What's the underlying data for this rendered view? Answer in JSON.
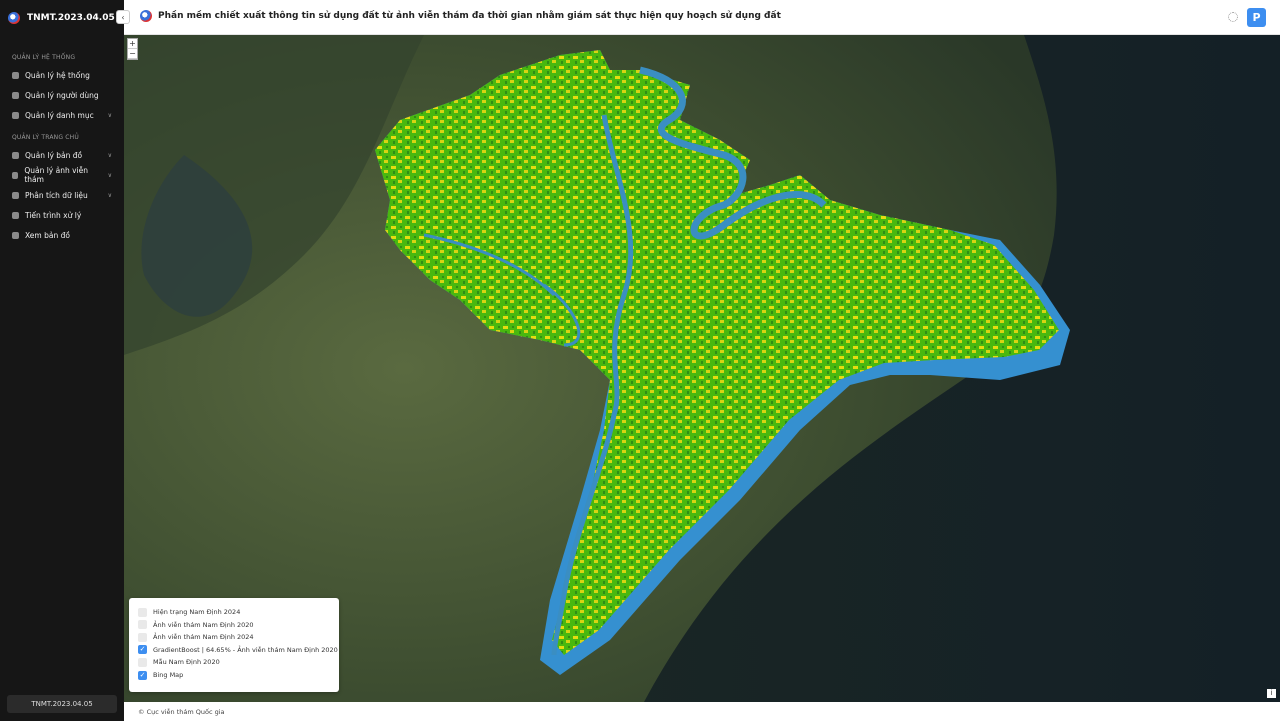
{
  "sidebar": {
    "brand": "TNMT.2023.04.05",
    "sections": [
      {
        "title": "QUẢN LÝ HỆ THỐNG",
        "items": [
          {
            "label": "Quản lý hệ thống",
            "submenu": false
          },
          {
            "label": "Quản lý người dùng",
            "submenu": false
          },
          {
            "label": "Quản lý danh mục",
            "submenu": true
          }
        ]
      },
      {
        "title": "QUẢN LÝ TRANG CHỦ",
        "items": [
          {
            "label": "Quản lý bản đồ",
            "submenu": true
          },
          {
            "label": "Quản lý ảnh viễn thám",
            "submenu": true
          },
          {
            "label": "Phân tích dữ liệu",
            "submenu": true
          },
          {
            "label": "Tiến trình xử lý",
            "submenu": false
          },
          {
            "label": "Xem bản đồ",
            "submenu": false
          }
        ]
      }
    ],
    "footer": "TNMT.2023.04.05"
  },
  "header": {
    "title": "Phần mềm chiết xuất thông tin sử dụng đất từ ảnh viễn thám đa thời gian nhằm giám sát thực hiện quy hoạch sử dụng đất",
    "avatar": "P"
  },
  "map": {
    "zoom_in": "+",
    "zoom_out": "−",
    "layers": [
      {
        "label": "Hiện trạng Nam Định 2024",
        "checked": false
      },
      {
        "label": "Ảnh viễn thám Nam Định 2020",
        "checked": false
      },
      {
        "label": "Ảnh viễn thám Nam Định 2024",
        "checked": false
      },
      {
        "label": "GradientBoost | 64.65% - Ảnh viễn thám Nam Định 2020",
        "checked": true
      },
      {
        "label": "Mẫu Nam Định 2020",
        "checked": false
      },
      {
        "label": "Bing Map",
        "checked": true
      }
    ],
    "attribution": "© Cục viễn thám Quốc gia",
    "info": "i"
  }
}
